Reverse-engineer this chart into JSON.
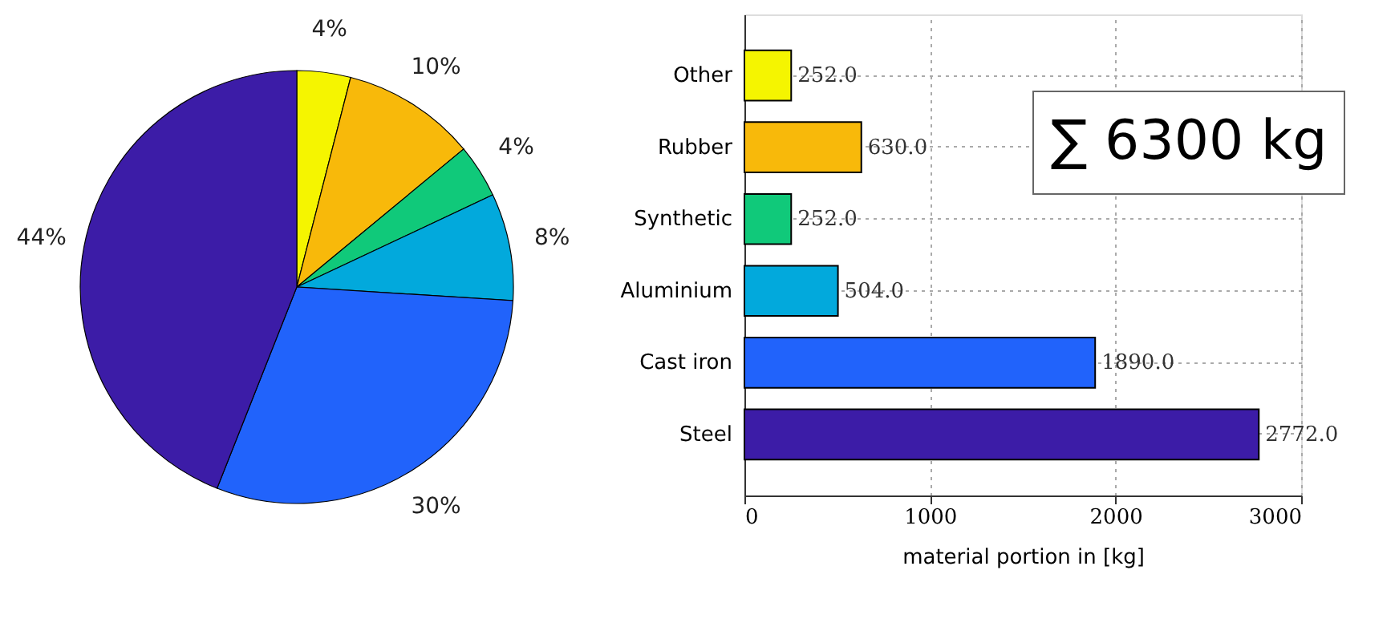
{
  "chart_data": [
    {
      "type": "pie",
      "categories": [
        null,
        null,
        null,
        null,
        null,
        null
      ],
      "values": [
        4,
        10,
        4,
        8,
        30,
        44
      ],
      "colors": [
        "#f5f500",
        "#f8b90a",
        "#10c97a",
        "#02a9dc",
        "#2163fb",
        "#3c1ca7"
      ],
      "value_labels": [
        "4%",
        "10%",
        "4%",
        "8%",
        "30%",
        "44%"
      ]
    },
    {
      "type": "bar",
      "orientation": "horizontal",
      "categories": [
        "Other",
        "Rubber",
        "Synthetic",
        "Aluminium",
        "Cast iron",
        "Steel"
      ],
      "values": [
        252,
        630,
        252,
        504,
        1890,
        2772
      ],
      "colors": [
        "#f5f500",
        "#f8b90a",
        "#10c97a",
        "#02a9dc",
        "#2163fb",
        "#3c1ca7"
      ],
      "value_labels": [
        "252.0",
        "630.0",
        "252.0",
        "504.0",
        "1890.0",
        "2772.0"
      ],
      "xlim": [
        0,
        3000
      ],
      "xticks": [
        0,
        1000,
        2000,
        3000
      ],
      "xlabel": "material portion in [kg]",
      "grid": true,
      "annotations": [
        "∑ 6300 kg"
      ]
    }
  ]
}
